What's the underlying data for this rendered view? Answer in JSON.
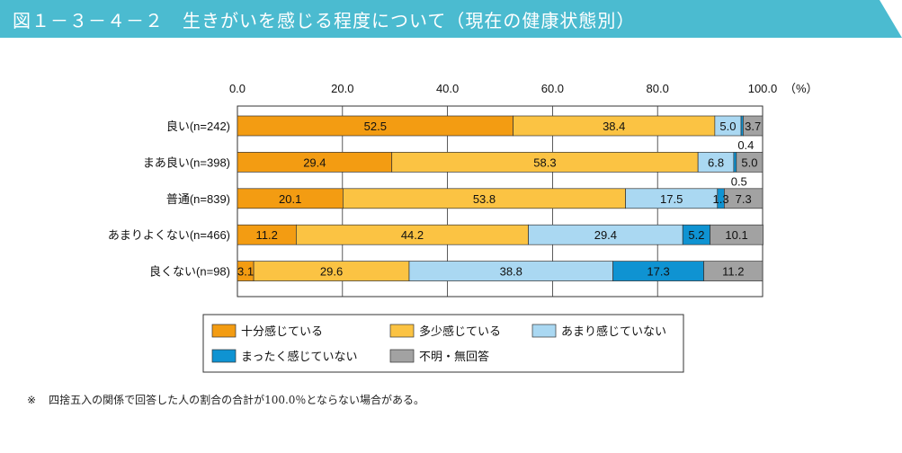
{
  "header": {
    "title": "図１－３－４－２　生きがいを感じる程度について（現在の健康状態別）",
    "band_color": "#4bbbd0"
  },
  "footnote": {
    "mark": "※",
    "text": "四捨五入の関係で回答した人の割合の合計が100.0％とならない場合がある。"
  },
  "chart_data": {
    "type": "bar",
    "orientation": "horizontal",
    "stacked": true,
    "x_ticks": [
      "0.0",
      "20.0",
      "40.0",
      "60.0",
      "80.0",
      "100.0"
    ],
    "x_unit": "（%）",
    "xlim": [
      0,
      100
    ],
    "grid": true,
    "legend_position": "bottom",
    "categories": [
      "良い(n=242)",
      "まあ良い(n=398)",
      "普通(n=839)",
      "あまりよくない(n=466)",
      "良くない(n=98)"
    ],
    "series": [
      {
        "name": "十分感じている",
        "color": "#f39c12",
        "values": [
          52.5,
          29.4,
          20.1,
          11.2,
          3.1
        ]
      },
      {
        "name": "多少感じている",
        "color": "#fbc343",
        "values": [
          38.4,
          58.3,
          53.8,
          44.2,
          29.6
        ]
      },
      {
        "name": "あまり感じていない",
        "color": "#aad8f2",
        "values": [
          5.0,
          6.8,
          17.5,
          29.4,
          38.8
        ]
      },
      {
        "name": "まったく感じていない",
        "color": "#0f93d2",
        "values": [
          0.4,
          0.5,
          1.3,
          5.2,
          17.3
        ]
      },
      {
        "name": "不明・無回答",
        "color": "#a2a2a2",
        "values": [
          3.7,
          5.0,
          7.3,
          10.1,
          11.2
        ]
      }
    ],
    "value_labels": [
      [
        "52.5",
        "38.4",
        "5.0",
        "0.4",
        "3.7"
      ],
      [
        "29.4",
        "58.3",
        "6.8",
        "0.5",
        "5.0"
      ],
      [
        "20.1",
        "53.8",
        "17.5",
        "1.3",
        "7.3"
      ],
      [
        "11.2",
        "44.2",
        "29.4",
        "5.2",
        "10.1"
      ],
      [
        "3.1",
        "29.6",
        "38.8",
        "17.3",
        "11.2"
      ]
    ]
  }
}
